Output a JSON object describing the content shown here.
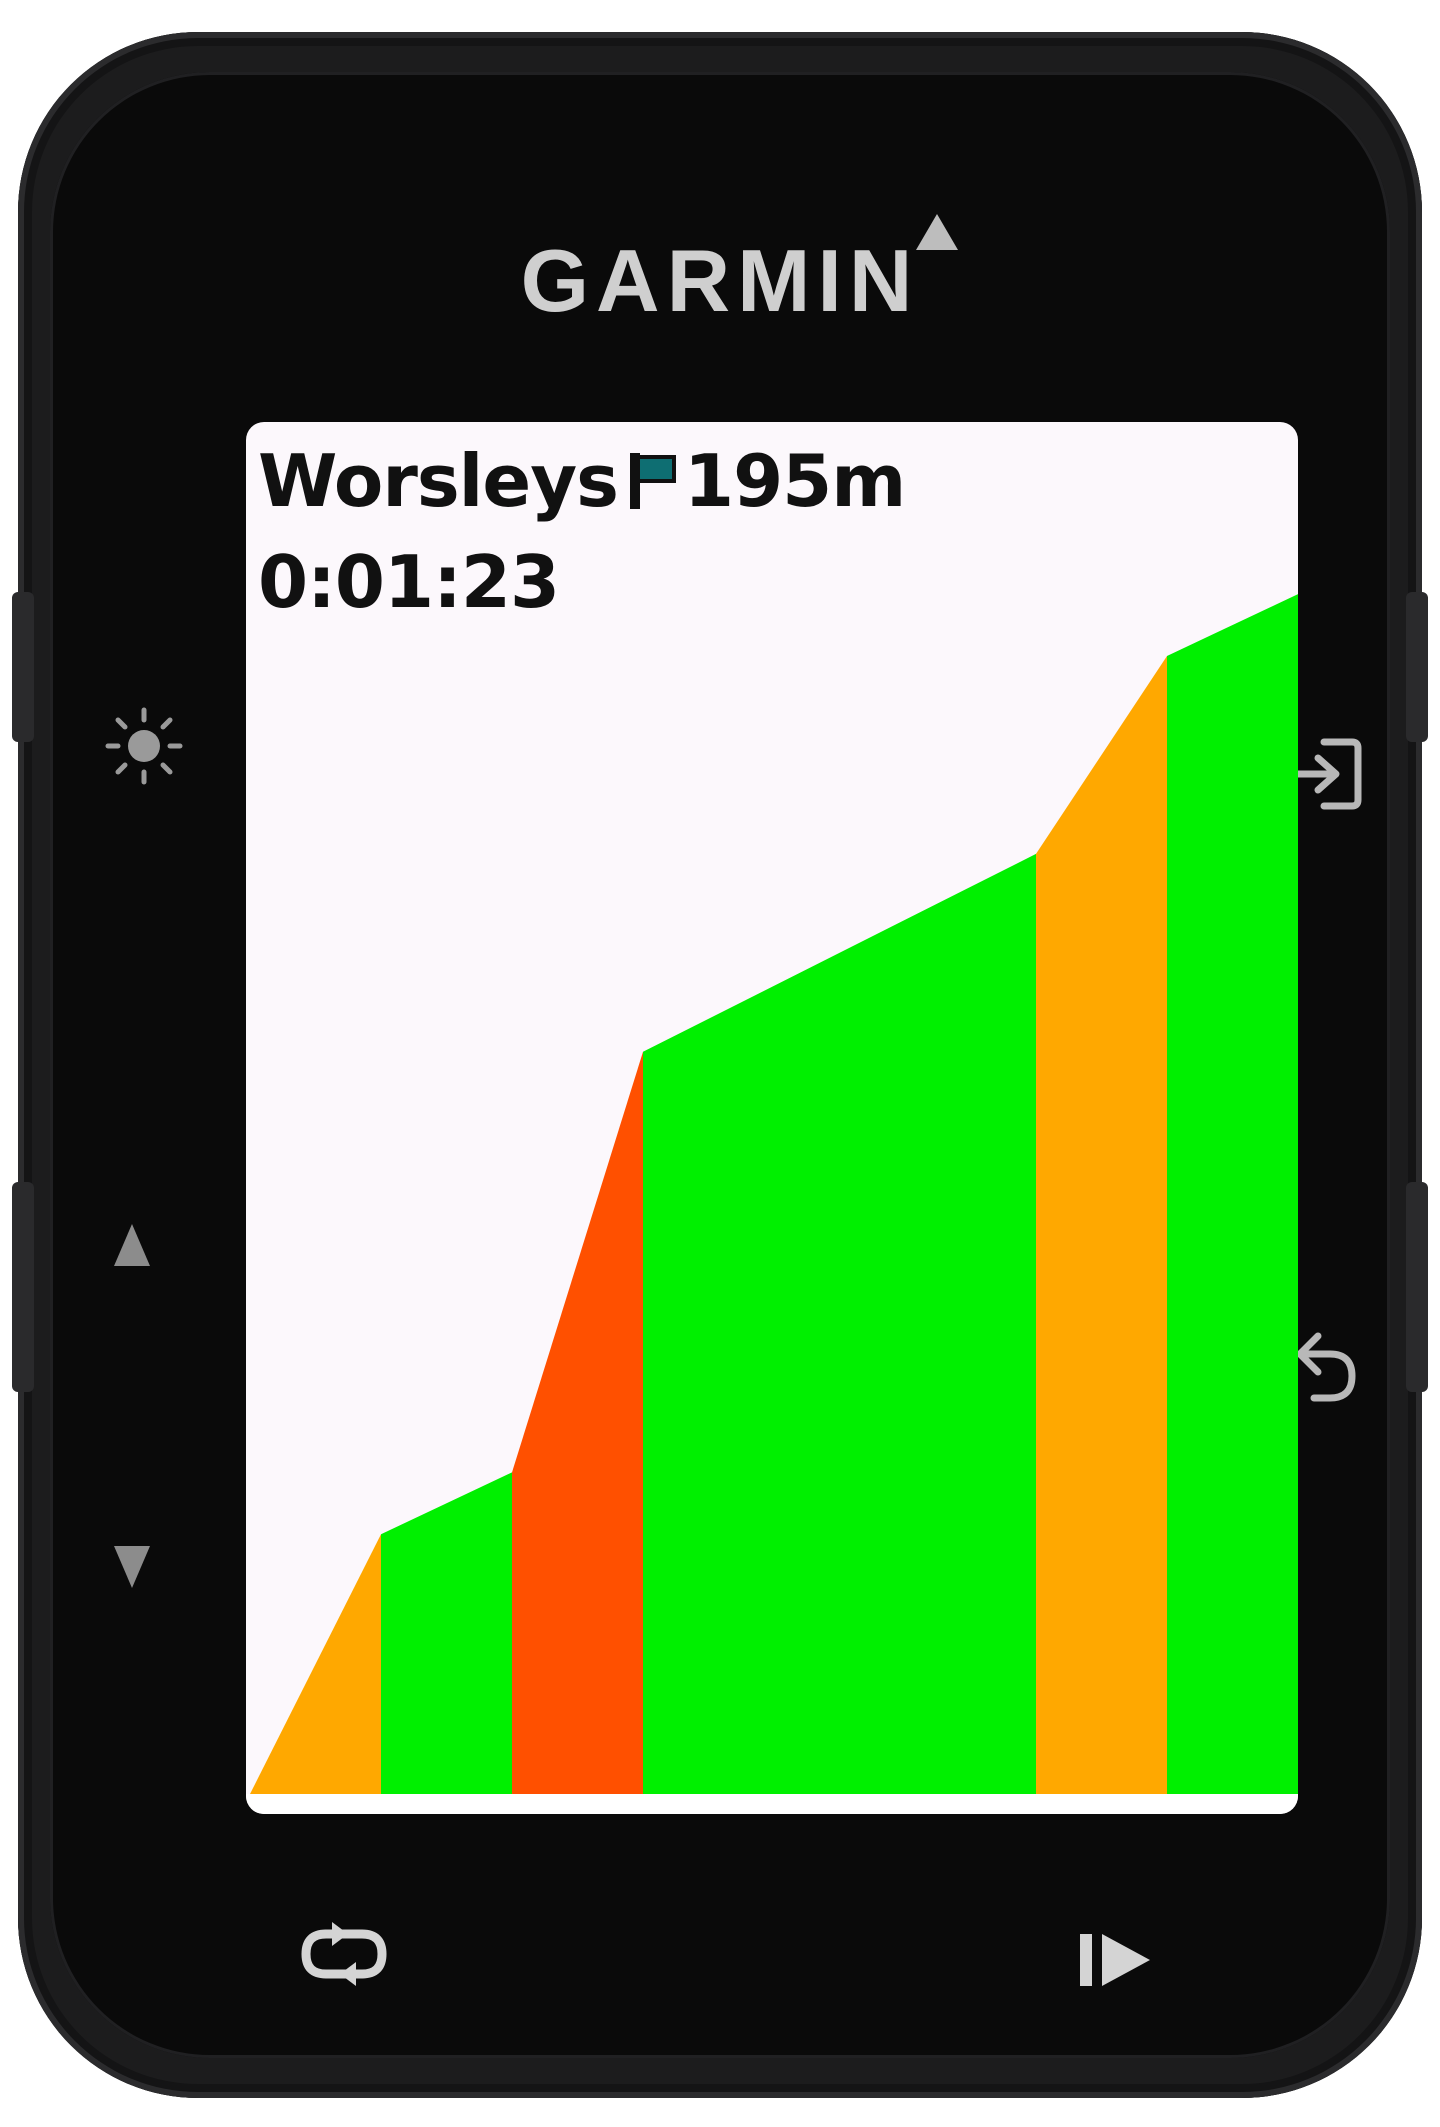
{
  "device": {
    "brand": "GARMIN"
  },
  "segment": {
    "name": "Worsleys",
    "distance_to_go": "195m",
    "elapsed_time": "0:01:23"
  },
  "profile_colors": {
    "easy": "#00f000",
    "moderate": "#ffa800",
    "steep": "#ff5000"
  },
  "chart_data": {
    "type": "area",
    "title": "",
    "xlabel": "",
    "ylabel": "",
    "grid": false,
    "legend": "none",
    "xlim": [
      0,
      8
    ],
    "ylim": [
      0,
      100
    ],
    "points": [
      {
        "x": 0,
        "y": 0
      },
      {
        "x": 1,
        "y": 21
      },
      {
        "x": 2,
        "y": 26
      },
      {
        "x": 3,
        "y": 60
      },
      {
        "x": 6,
        "y": 76
      },
      {
        "x": 7,
        "y": 92
      },
      {
        "x": 8,
        "y": 97
      }
    ],
    "segments": [
      {
        "from": 0,
        "to": 1,
        "grade": "moderate"
      },
      {
        "from": 1,
        "to": 2,
        "grade": "easy"
      },
      {
        "from": 2,
        "to": 3,
        "grade": "steep"
      },
      {
        "from": 3,
        "to": 6,
        "grade": "easy"
      },
      {
        "from": 6,
        "to": 7,
        "grade": "moderate"
      },
      {
        "from": 7,
        "to": 8,
        "grade": "easy"
      }
    ]
  }
}
